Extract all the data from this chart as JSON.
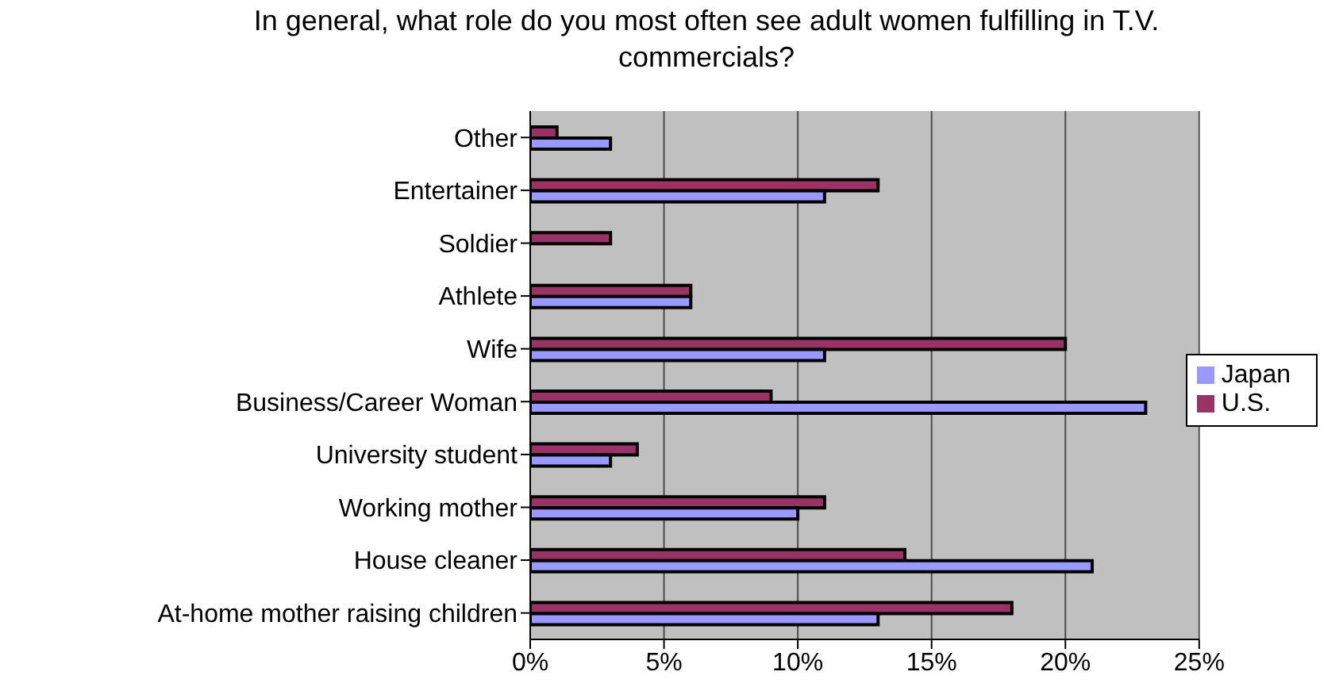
{
  "chart_data": {
    "type": "bar",
    "orientation": "horizontal",
    "title": "In general, what role do you most often see adult women fulfilling in T.V. commercials?",
    "categories": [
      "Other",
      "Entertainer",
      "Soldier",
      "Athlete",
      "Wife",
      "Business/Career Woman",
      "University student",
      "Working mother",
      "House cleaner",
      "At-home mother raising children"
    ],
    "series": [
      {
        "name": "U.S.",
        "color": "#993366",
        "values": [
          1,
          13,
          3,
          6,
          20,
          9,
          4,
          11,
          14,
          18
        ]
      },
      {
        "name": "Japan",
        "color": "#9999ff",
        "values": [
          3,
          11,
          0,
          6,
          11,
          23,
          3,
          10,
          21,
          13
        ]
      }
    ],
    "xlim": [
      0,
      25
    ],
    "xticks": [
      {
        "value": 0,
        "label": "0%"
      },
      {
        "value": 5,
        "label": "5%"
      },
      {
        "value": 10,
        "label": "10%"
      },
      {
        "value": 15,
        "label": "15%"
      },
      {
        "value": 20,
        "label": "20%"
      },
      {
        "value": 25,
        "label": "25%"
      }
    ],
    "grid": "x",
    "legend": "right"
  }
}
